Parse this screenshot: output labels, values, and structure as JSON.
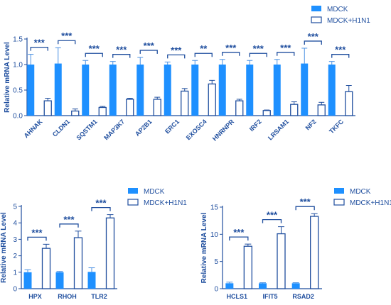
{
  "colors": {
    "solid": "#1e90ff",
    "axis": "#1f4e9e",
    "hollow_fill": "#ffffff",
    "error": "#4a90e2"
  },
  "chart_data": [
    {
      "type": "bar",
      "ylabel": "Relative mRNA Level",
      "ylim": [
        0,
        1.5
      ],
      "yticks": [
        "0.0",
        "0.5",
        "1.0",
        "1.5"
      ],
      "categories": [
        "AHNAK",
        "CLDN1",
        "SQSTM1",
        "MAP3K7",
        "AP2B1",
        "ERC1",
        "EXOSC4",
        "HNRNPR",
        "IRF2",
        "LRSAM1",
        "NF2",
        "TKFC"
      ],
      "series": [
        {
          "name": "MDCK",
          "style": "solid",
          "values": [
            1.0,
            1.02,
            1.0,
            1.0,
            1.0,
            1.0,
            1.0,
            1.0,
            1.0,
            1.0,
            1.02,
            1.0
          ],
          "errors": [
            0.2,
            0.31,
            0.08,
            0.06,
            0.14,
            0.05,
            0.08,
            0.1,
            0.08,
            0.1,
            0.3,
            0.06
          ]
        },
        {
          "name": "MDCK+H1N1",
          "style": "hollow",
          "values": [
            0.29,
            0.09,
            0.16,
            0.32,
            0.32,
            0.48,
            0.62,
            0.29,
            0.1,
            0.22,
            0.21,
            0.47
          ],
          "errors": [
            0.05,
            0.04,
            0.02,
            0.02,
            0.04,
            0.05,
            0.07,
            0.03,
            0.01,
            0.05,
            0.05,
            0.12
          ]
        }
      ],
      "significance": [
        "***",
        "***",
        "***",
        "***",
        "***",
        "***",
        "**",
        "***",
        "***",
        "***",
        "***",
        "***"
      ],
      "legend": [
        "MDCK",
        "MDCK+H1N1"
      ]
    },
    {
      "type": "bar",
      "ylabel": "Relative mRNA Level",
      "ylim": [
        0,
        5
      ],
      "yticks": [
        "0",
        "1",
        "2",
        "3",
        "4",
        "5"
      ],
      "categories": [
        "HPX",
        "RHOH",
        "TLR2"
      ],
      "series": [
        {
          "name": "MDCK",
          "style": "solid",
          "values": [
            1.0,
            1.0,
            1.02
          ],
          "errors": [
            0.15,
            0.05,
            0.25
          ]
        },
        {
          "name": "MDCK+H1N1",
          "style": "hollow",
          "values": [
            2.45,
            3.1,
            4.3
          ],
          "errors": [
            0.25,
            0.4,
            0.2
          ]
        }
      ],
      "significance": [
        "***",
        "***",
        "***"
      ],
      "legend": [
        "MDCK",
        "MDCK+H1N1"
      ]
    },
    {
      "type": "bar",
      "ylabel": "Relative mRNA Level",
      "ylim": [
        0,
        15
      ],
      "yticks": [
        "0",
        "5",
        "10",
        "15"
      ],
      "categories": [
        "HCLS1",
        "IFIT5",
        "RSAD2"
      ],
      "series": [
        {
          "name": "MDCK",
          "style": "solid",
          "values": [
            1.0,
            1.0,
            1.0
          ],
          "errors": [
            0.2,
            0.1,
            0.1
          ]
        },
        {
          "name": "MDCK+H1N1",
          "style": "hollow",
          "values": [
            7.8,
            10.1,
            13.3
          ],
          "errors": [
            0.4,
            1.3,
            0.5
          ]
        }
      ],
      "significance": [
        "***",
        "***",
        "***"
      ],
      "legend": [
        "MDCK",
        "MDCK+H1N1"
      ]
    }
  ]
}
